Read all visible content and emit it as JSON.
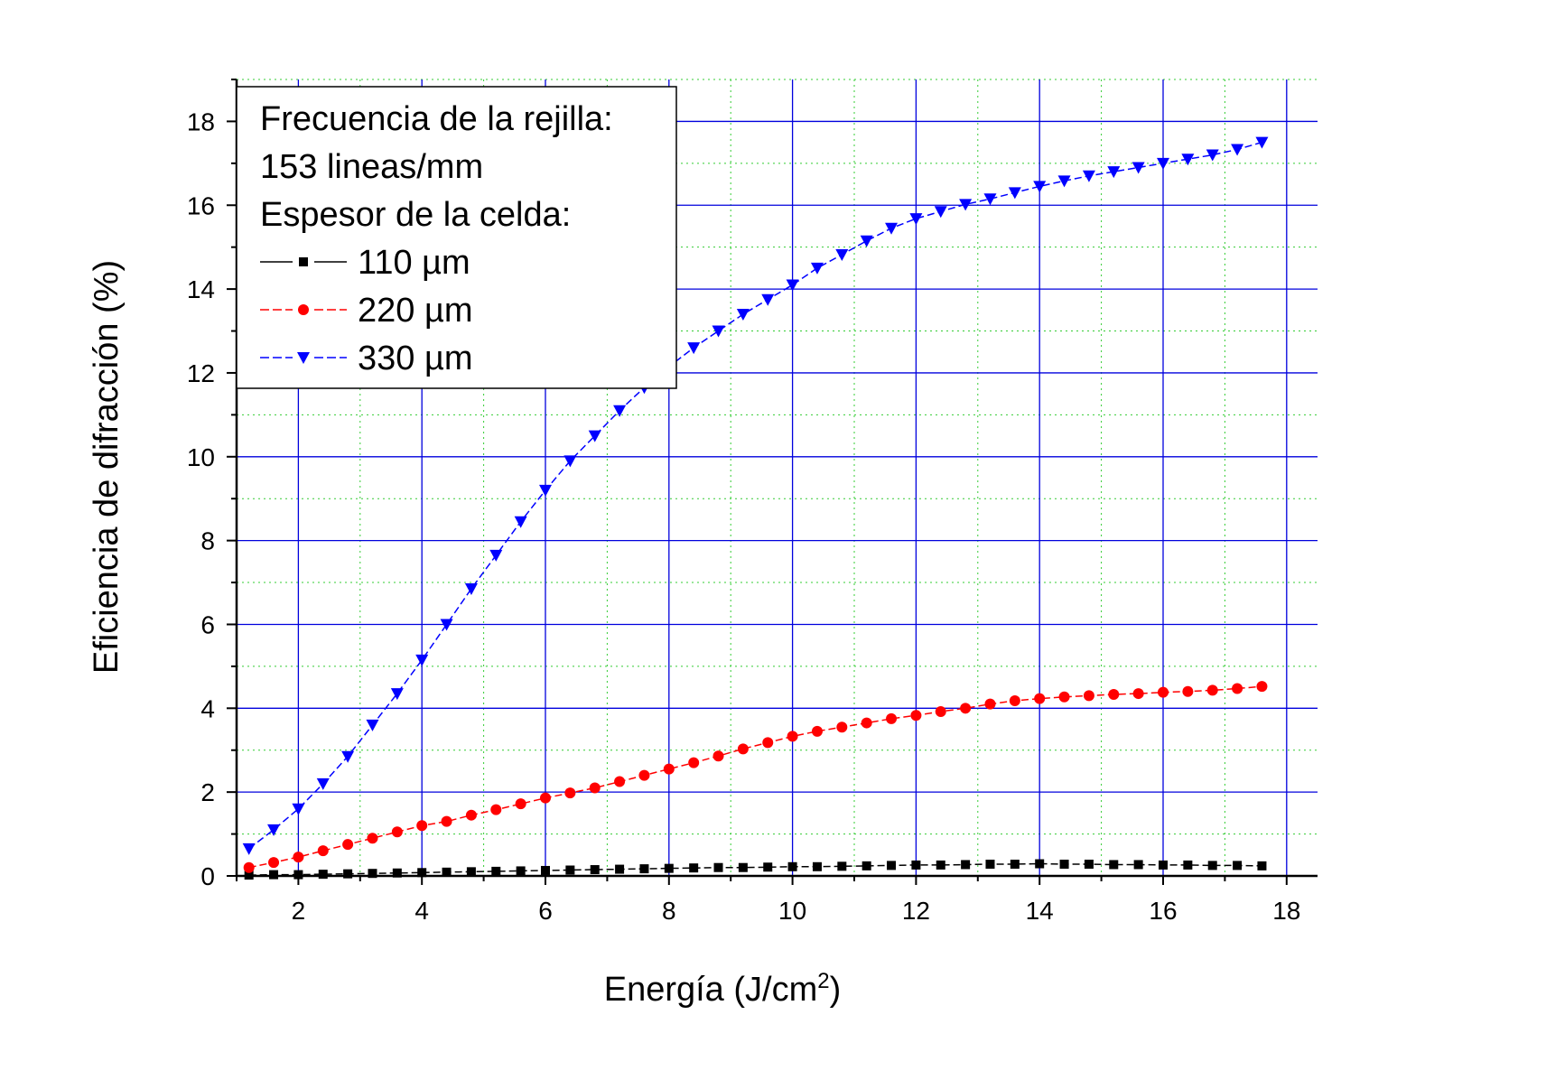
{
  "chart_data": {
    "type": "line",
    "xlabel": "Energía (J/cm",
    "xlabel_sup": "2",
    "xlabel_end": ")",
    "ylabel": "Eficiencia de difracción (%)",
    "xlim": [
      1.0,
      18.5
    ],
    "ylim": [
      0,
      19
    ],
    "x_ticks": [
      2,
      4,
      6,
      8,
      10,
      12,
      14,
      16,
      18
    ],
    "y_ticks": [
      0,
      2,
      4,
      6,
      8,
      10,
      12,
      14,
      16,
      18
    ],
    "grid": true,
    "legend_position": "top-left",
    "legend_header": [
      "Frecuencia de la rejilla:",
      "153 lineas/mm",
      "Espesor de la celda:"
    ],
    "series": [
      {
        "name": "110 µm",
        "color": "#000000",
        "marker": "square",
        "x": [
          1.2,
          1.6,
          2.0,
          2.4,
          2.8,
          3.2,
          3.6,
          4.0,
          4.4,
          4.8,
          5.2,
          5.6,
          6.0,
          6.4,
          6.8,
          7.2,
          7.6,
          8.0,
          8.4,
          8.8,
          9.2,
          9.6,
          10.0,
          10.4,
          10.8,
          11.2,
          11.6,
          12.0,
          12.4,
          12.8,
          13.2,
          13.6,
          14.0,
          14.4,
          14.8,
          15.2,
          15.6,
          16.0,
          16.4,
          16.8,
          17.2,
          17.6
        ],
        "y": [
          0.02,
          0.03,
          0.03,
          0.04,
          0.05,
          0.06,
          0.07,
          0.08,
          0.09,
          0.1,
          0.11,
          0.12,
          0.13,
          0.14,
          0.15,
          0.16,
          0.17,
          0.18,
          0.19,
          0.2,
          0.2,
          0.21,
          0.22,
          0.22,
          0.23,
          0.24,
          0.25,
          0.26,
          0.26,
          0.27,
          0.28,
          0.28,
          0.29,
          0.28,
          0.28,
          0.27,
          0.27,
          0.26,
          0.26,
          0.25,
          0.25,
          0.24
        ]
      },
      {
        "name": "220 µm",
        "color": "#ff0000",
        "marker": "circle",
        "x": [
          1.2,
          1.6,
          2.0,
          2.4,
          2.8,
          3.2,
          3.6,
          4.0,
          4.4,
          4.8,
          5.2,
          5.6,
          6.0,
          6.4,
          6.8,
          7.2,
          7.6,
          8.0,
          8.4,
          8.8,
          9.2,
          9.6,
          10.0,
          10.4,
          10.8,
          11.2,
          11.6,
          12.0,
          12.4,
          12.8,
          13.2,
          13.6,
          14.0,
          14.4,
          14.8,
          15.2,
          15.6,
          16.0,
          16.4,
          16.8,
          17.2,
          17.6
        ],
        "y": [
          0.2,
          0.32,
          0.45,
          0.6,
          0.75,
          0.9,
          1.05,
          1.2,
          1.3,
          1.45,
          1.58,
          1.72,
          1.86,
          1.98,
          2.1,
          2.25,
          2.4,
          2.55,
          2.7,
          2.86,
          3.03,
          3.18,
          3.33,
          3.45,
          3.55,
          3.65,
          3.75,
          3.83,
          3.92,
          4.0,
          4.1,
          4.18,
          4.23,
          4.27,
          4.3,
          4.33,
          4.35,
          4.38,
          4.4,
          4.43,
          4.47,
          4.52
        ]
      },
      {
        "name": "330 µm",
        "color": "#0000ff",
        "marker": "triangle-down",
        "x": [
          1.2,
          1.6,
          2.0,
          2.4,
          2.8,
          3.2,
          3.6,
          4.0,
          4.4,
          4.8,
          5.2,
          5.6,
          6.0,
          6.4,
          6.8,
          7.2,
          7.6,
          8.0,
          8.4,
          8.8,
          9.2,
          9.6,
          10.0,
          10.4,
          10.8,
          11.2,
          11.6,
          12.0,
          12.4,
          12.8,
          13.2,
          13.6,
          14.0,
          14.4,
          14.8,
          15.2,
          15.6,
          16.0,
          16.4,
          16.8,
          17.2,
          17.6
        ],
        "y": [
          0.65,
          1.1,
          1.6,
          2.2,
          2.85,
          3.6,
          4.35,
          5.15,
          6.0,
          6.85,
          7.65,
          8.45,
          9.2,
          9.9,
          10.5,
          11.1,
          11.65,
          12.15,
          12.6,
          13.0,
          13.4,
          13.75,
          14.1,
          14.5,
          14.82,
          15.15,
          15.45,
          15.68,
          15.85,
          16.02,
          16.15,
          16.3,
          16.45,
          16.58,
          16.7,
          16.8,
          16.9,
          17.0,
          17.1,
          17.2,
          17.33,
          17.5
        ]
      }
    ]
  }
}
